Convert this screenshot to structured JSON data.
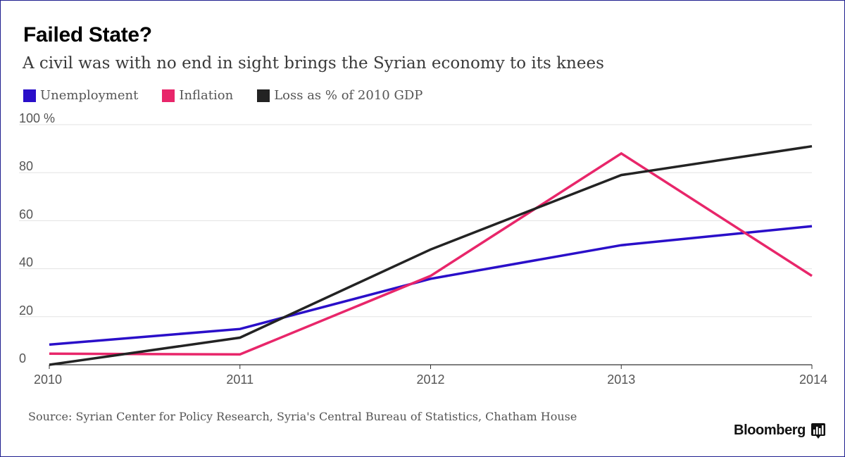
{
  "chart_data": {
    "type": "line",
    "title": "Failed State?",
    "subtitle": "A civil was with no end in sight brings the Syrian economy to its knees",
    "x": [
      "2010",
      "2011",
      "2012",
      "2013",
      "2014"
    ],
    "ylim": [
      0,
      100
    ],
    "y_ticks": [
      "100 %",
      "80",
      "60",
      "40",
      "20",
      "0"
    ],
    "y_tick_values": [
      100,
      80,
      60,
      40,
      20,
      0
    ],
    "grid": true,
    "legend_placement": "top-left",
    "series": [
      {
        "name": "Unemployment",
        "color": "#2a0fc9",
        "values": [
          8.4,
          14.9,
          35.8,
          49.8,
          57.7
        ]
      },
      {
        "name": "Inflation",
        "color": "#e8266a",
        "values": [
          4.6,
          4.3,
          37.0,
          88.0,
          37.0
        ]
      },
      {
        "name": "Loss as % of 2010 GDP",
        "color": "#232323",
        "values": [
          0.0,
          11.3,
          48.0,
          79.0,
          91.0
        ]
      }
    ]
  },
  "source": "Source: Syrian Center for Policy Research, Syria's Central Bureau of Statistics, Chatham House",
  "brand": {
    "name": "Bloomberg",
    "icon": "bar-chart-icon"
  }
}
